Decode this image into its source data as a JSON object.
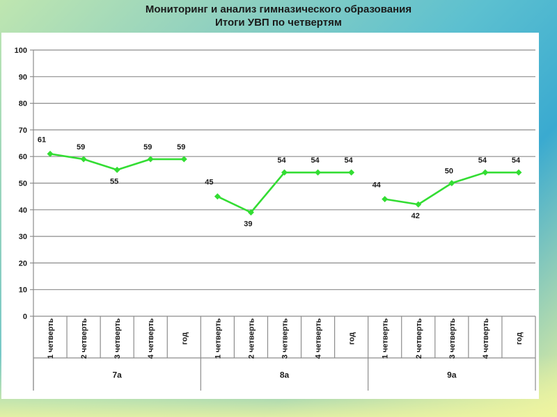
{
  "header": {
    "title_line1": "Мониторинг и анализ гимназического образования",
    "title_line2": "Итоги УВП по четвертям"
  },
  "colors": {
    "line": "#33dd33",
    "grid": "#8c8c8c",
    "text": "#1a1a1a",
    "panel": "#ffffff"
  },
  "chart_data": {
    "type": "line",
    "title": "",
    "ylim": [
      0,
      100
    ],
    "yticks": [
      0,
      10,
      20,
      30,
      40,
      50,
      60,
      70,
      80,
      90,
      100
    ],
    "grid": true,
    "legend": "none",
    "groups": [
      {
        "name": "7а",
        "categories": [
          "1 четверть",
          "2 четверть",
          "3 четверть",
          "4 четверть",
          "год"
        ],
        "values": [
          61,
          59,
          55,
          59,
          59
        ]
      },
      {
        "name": "8а",
        "categories": [
          "1 четверть",
          "2 четверть",
          "3 четверть",
          "4 четверть",
          "год"
        ],
        "values": [
          45,
          39,
          54,
          54,
          54
        ]
      },
      {
        "name": "9а",
        "categories": [
          "1 четверть",
          "2 четверть",
          "3 четверть",
          "4 четверть",
          "год"
        ],
        "values": [
          44,
          42,
          50,
          54,
          54
        ]
      }
    ]
  }
}
